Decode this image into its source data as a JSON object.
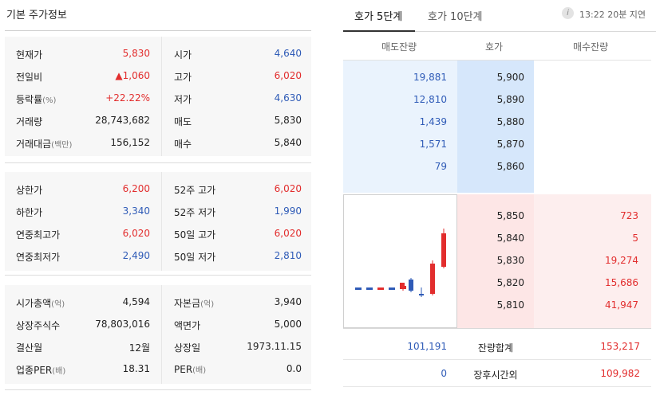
{
  "left": {
    "title": "기본 주가정보",
    "rows_group1": [
      {
        "l1": "현재가",
        "v1": "5,830",
        "c1": "red",
        "l2": "시가",
        "v2": "4,640",
        "c2": "blue"
      },
      {
        "l1": "전일비",
        "v1": "▲1,060",
        "c1": "red",
        "l2": "고가",
        "v2": "6,020",
        "c2": "red"
      },
      {
        "l1": "등락률",
        "l1sub": "(%)",
        "v1": "+22.22%",
        "c1": "red",
        "l2": "저가",
        "v2": "4,630",
        "c2": "blue"
      },
      {
        "l1": "거래량",
        "v1": "28,743,682",
        "c1": "dark",
        "l2": "매도",
        "v2": "5,830",
        "c2": "dark"
      },
      {
        "l1": "거래대금",
        "l1sub": "(백만)",
        "v1": "156,152",
        "c1": "dark",
        "l2": "매수",
        "v2": "5,840",
        "c2": "dark"
      }
    ],
    "rows_group2": [
      {
        "l1": "상한가",
        "v1": "6,200",
        "c1": "red",
        "l2": "52주 고가",
        "v2": "6,020",
        "c2": "red"
      },
      {
        "l1": "하한가",
        "v1": "3,340",
        "c1": "blue",
        "l2": "52주 저가",
        "v2": "1,990",
        "c2": "blue"
      },
      {
        "l1": "연중최고가",
        "v1": "6,020",
        "c1": "red",
        "l2": "50일 고가",
        "v2": "6,020",
        "c2": "red"
      },
      {
        "l1": "연중최저가",
        "v1": "2,490",
        "c1": "blue",
        "l2": "50일 저가",
        "v2": "2,810",
        "c2": "blue"
      }
    ],
    "rows_group3": [
      {
        "l1": "시가총액",
        "l1sub": "(억)",
        "v1": "4,594",
        "c1": "dark",
        "l2": "자본금",
        "l2sub": "(억)",
        "v2": "3,940",
        "c2": "dark"
      },
      {
        "l1": "상장주식수",
        "v1": "78,803,016",
        "c1": "dark",
        "l2": "액면가",
        "v2": "5,000",
        "c2": "dark"
      },
      {
        "l1": "결산월",
        "v1": "12월",
        "c1": "dark",
        "l2": "상장일",
        "v2": "1973.11.15",
        "c2": "dark"
      },
      {
        "l1": "업종PER",
        "l1sub": "(배)",
        "v1": "18.31",
        "c1": "dark",
        "l2": "PER",
        "l2sub": "(배)",
        "v2": "0.0",
        "c2": "dark"
      }
    ]
  },
  "orderbook": {
    "tabs": [
      "호가 5단계",
      "호가 10단계"
    ],
    "info_icon": "i",
    "delay_text": "13:22 20분 지연",
    "headers": {
      "ask": "매도잔량",
      "price": "호가",
      "bid": "매수잔량"
    },
    "asks": [
      {
        "qty": "19,881",
        "price": "5,900"
      },
      {
        "qty": "12,810",
        "price": "5,890"
      },
      {
        "qty": "1,439",
        "price": "5,880"
      },
      {
        "qty": "1,571",
        "price": "5,870"
      },
      {
        "qty": "79",
        "price": "5,860"
      }
    ],
    "bids": [
      {
        "price": "5,850",
        "qty": "723"
      },
      {
        "price": "5,840",
        "qty": "5"
      },
      {
        "price": "5,830",
        "qty": "19,274"
      },
      {
        "price": "5,820",
        "qty": "15,686"
      },
      {
        "price": "5,810",
        "qty": "41,947"
      }
    ],
    "total": {
      "ask": "101,191",
      "label": "잔량합계",
      "bid": "153,217"
    },
    "after_hours": {
      "ask": "0",
      "label": "장후시간외",
      "bid": "109,982"
    }
  },
  "colors": {
    "up": "#e22d2d",
    "down": "#2f5bb7"
  }
}
